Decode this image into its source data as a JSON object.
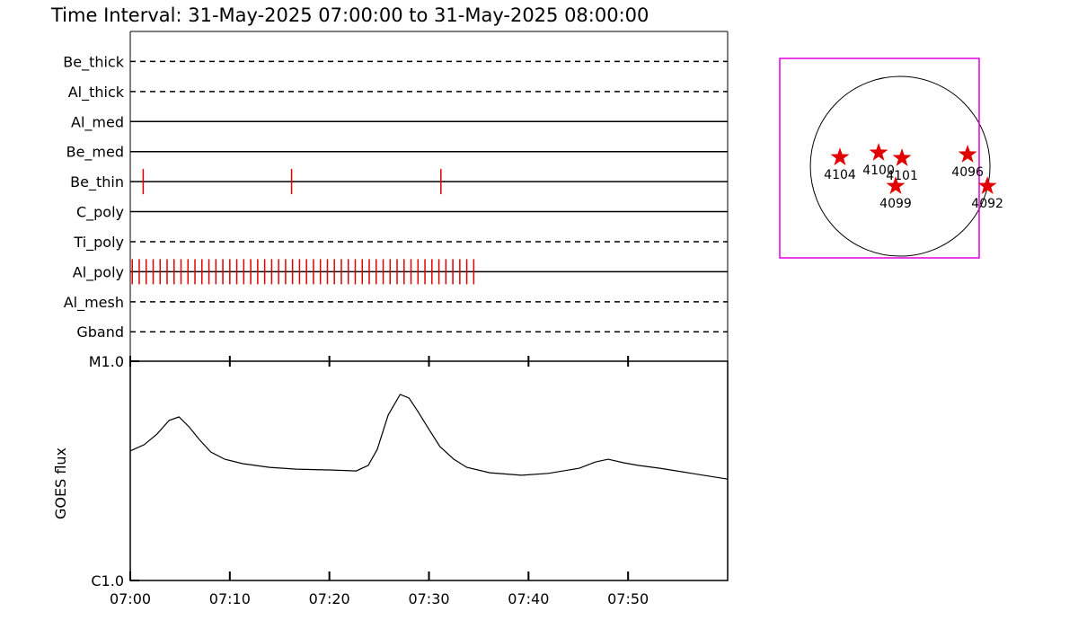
{
  "title": "Time Interval: 31-May-2025 07:00:00 to 31-May-2025 08:00:00",
  "chart_data": [
    {
      "type": "timeline",
      "xlim": [
        0,
        60
      ],
      "event_color": "#e00000",
      "filters": [
        {
          "name": "Be_thick",
          "style": "dashed",
          "events": []
        },
        {
          "name": "Al_thick",
          "style": "dashed",
          "events": []
        },
        {
          "name": "Al_med",
          "style": "solid",
          "events": []
        },
        {
          "name": "Be_med",
          "style": "solid",
          "events": []
        },
        {
          "name": "Be_thin",
          "style": "solid",
          "events": [
            1.3,
            16.2,
            31.2
          ]
        },
        {
          "name": "C_poly",
          "style": "solid",
          "events": []
        },
        {
          "name": "Ti_poly",
          "style": "dashed",
          "events": []
        },
        {
          "name": "Al_poly",
          "style": "solid",
          "events": [
            0.2,
            0.9,
            1.6,
            2.3,
            3.0,
            3.7,
            4.4,
            5.1,
            5.8,
            6.5,
            7.2,
            7.9,
            8.6,
            9.3,
            10.0,
            10.7,
            11.4,
            12.1,
            12.8,
            13.5,
            14.2,
            14.9,
            15.6,
            16.3,
            17.0,
            17.7,
            18.4,
            19.1,
            19.8,
            20.5,
            21.2,
            21.9,
            22.6,
            23.3,
            24.0,
            24.7,
            25.4,
            26.1,
            26.8,
            27.5,
            28.2,
            28.9,
            29.6,
            30.3,
            31.0,
            31.7,
            32.4,
            33.1,
            33.8,
            34.5
          ]
        },
        {
          "name": "Al_mesh",
          "style": "dashed",
          "events": []
        },
        {
          "name": "Gband",
          "style": "dashed",
          "events": []
        }
      ]
    },
    {
      "type": "line",
      "y_label": "GOES flux",
      "log_y": true,
      "color": "#000000",
      "xlim": [
        0,
        60
      ],
      "xticks": [
        {
          "value": 0,
          "label": "07:00"
        },
        {
          "value": 10,
          "label": "07:10"
        },
        {
          "value": 20,
          "label": "07:20"
        },
        {
          "value": 30,
          "label": "07:30"
        },
        {
          "value": 40,
          "label": "07:40"
        },
        {
          "value": 50,
          "label": "07:50"
        }
      ],
      "ylim": [
        1e-06,
        1e-05
      ],
      "yticks": [
        {
          "value": 1e-06,
          "label": "C1.0"
        },
        {
          "value": 1e-05,
          "label": "M1.0"
        }
      ],
      "x": [
        0,
        1.4,
        2.7,
        3.9,
        4.9,
        5.9,
        7.0,
        8.1,
        9.5,
        11.3,
        14.0,
        16.7,
        20.3,
        22.7,
        23.9,
        24.8,
        25.9,
        27.1,
        28.0,
        28.9,
        30.0,
        31.1,
        32.5,
        33.8,
        36.1,
        39.3,
        42.0,
        45.1,
        46.7,
        48.0,
        49.6,
        51.0,
        53.2,
        56.4,
        60
      ],
      "values": [
        3.9e-06,
        4.16e-06,
        4.66e-06,
        5.37e-06,
        5.57e-06,
        5.02e-06,
        4.36e-06,
        3.85e-06,
        3.57e-06,
        3.41e-06,
        3.28e-06,
        3.22e-06,
        3.19e-06,
        3.16e-06,
        3.35e-06,
        3.96e-06,
        5.68e-06,
        7.05e-06,
        6.79e-06,
        5.89e-06,
        4.89e-06,
        4.08e-06,
        3.57e-06,
        3.28e-06,
        3.1e-06,
        3.02e-06,
        3.08e-06,
        3.25e-06,
        3.47e-06,
        3.57e-06,
        3.44e-06,
        3.35e-06,
        3.25e-06,
        3.08e-06,
        2.9e-06
      ]
    }
  ],
  "sun_map": {
    "solar_radius": 950,
    "fov": {
      "xc": -219,
      "yc": 86,
      "width": 2109,
      "height": 2109
    },
    "fov_color": "#e000e0",
    "star_color": "#e00000",
    "regions": [
      {
        "label": "4104",
        "x": -637,
        "y": 95
      },
      {
        "label": "4100",
        "x": -228,
        "y": 143
      },
      {
        "label": "4101",
        "x": 19,
        "y": 86
      },
      {
        "label": "4099",
        "x": -48,
        "y": -209
      },
      {
        "label": "4096",
        "x": 713,
        "y": 124
      },
      {
        "label": "4092",
        "x": 922,
        "y": -209
      }
    ]
  }
}
